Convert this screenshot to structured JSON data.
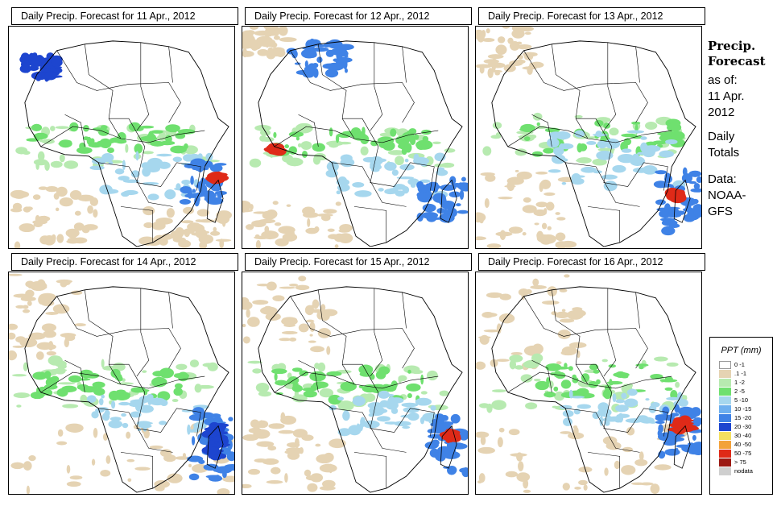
{
  "panels": [
    {
      "title": "Daily Precip. Forecast for  11 Apr., 2012"
    },
    {
      "title": "Daily Precip. Forecast for  12 Apr., 2012"
    },
    {
      "title": "Daily Precip. Forecast for  13 Apr., 2012"
    },
    {
      "title": "Daily Precip. Forecast for  14 Apr., 2012"
    },
    {
      "title": "Daily Precip. Forecast for  15 Apr., 2012"
    },
    {
      "title": "Daily Precip. Forecast for  16 Apr., 2012"
    }
  ],
  "sidebar": {
    "heading_line1": "Precip.",
    "heading_line2": "Forecast",
    "asof": "as of:",
    "date_line1": "11 Apr.",
    "date_line2": "2012",
    "daily": "Daily",
    "totals": "Totals",
    "data_label": "Data:",
    "source_line1": "NOAA-",
    "source_line2": "GFS"
  },
  "legend": {
    "title": "PPT (mm)",
    "items": [
      {
        "label": "0 -1",
        "color": "#ffffff"
      },
      {
        "label": ".1 -1",
        "color": "#e5d3b3"
      },
      {
        "label": "1 -2",
        "color": "#b7eab0"
      },
      {
        "label": "2 -5",
        "color": "#6fe06f"
      },
      {
        "label": "5 -10",
        "color": "#a6d7ee"
      },
      {
        "label": "10 -15",
        "color": "#6fb0ef"
      },
      {
        "label": "15 -20",
        "color": "#3f82e6"
      },
      {
        "label": "20 -30",
        "color": "#1d45cf"
      },
      {
        "label": "30 -40",
        "color": "#f3df60"
      },
      {
        "label": "40 -50",
        "color": "#f3a23a"
      },
      {
        "label": "50 -75",
        "color": "#df2a18"
      },
      {
        "label": "> 75",
        "color": "#9c1a14"
      },
      {
        "label": "nodata",
        "color": "#cfcfcf"
      }
    ]
  }
}
